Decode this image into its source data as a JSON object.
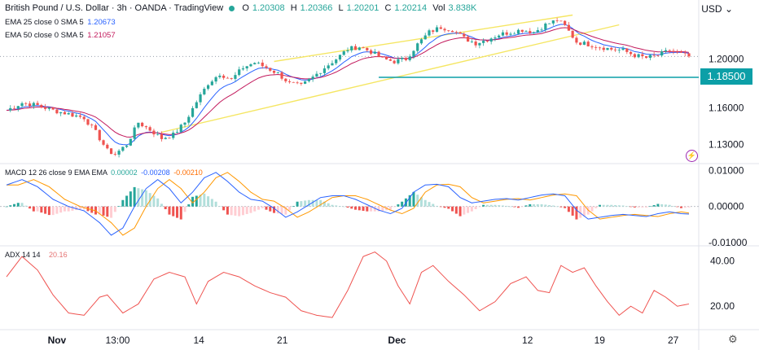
{
  "header": {
    "title": "British Pound / U.S. Dollar · 3h · OANDA · TradingView",
    "open_label": "O",
    "open": "1.20308",
    "high_label": "H",
    "high": "1.20366",
    "low_label": "L",
    "low": "1.20201",
    "close_label": "C",
    "close": "1.20214",
    "vol_label": "Vol",
    "vol": "3.838K"
  },
  "indicators": {
    "ema25": {
      "label": "EMA 25 close 0 SMA 5",
      "value": "1.20673",
      "color": "#2962ff"
    },
    "ema50": {
      "label": "EMA 50 close 0 SMA 5",
      "value": "1.21057",
      "color": "#c2185b"
    },
    "macd": {
      "label": "MACD 12 26 close 9 EMA EMA",
      "hist": "0.00002",
      "macd": "-0.00208",
      "signal": "-0.00210"
    },
    "adx": {
      "label": "ADX 14 14",
      "value": "20.16",
      "color": "#e57373"
    }
  },
  "currency": "USD",
  "price_badge": "1.18500",
  "colors": {
    "up": "#26a69a",
    "down": "#ef5350",
    "channel": "#f5e663",
    "support": "#0c9fa7",
    "macd_line": "#2962ff",
    "signal_line": "#ff9800",
    "adx_line": "#ef5350"
  },
  "icons": {
    "settings": "gear-icon",
    "alert": "lightning-icon"
  },
  "chart_data": [
    {
      "type": "candlestick",
      "title": "British Pound / U.S. Dollar",
      "interval": "3h",
      "y_ticks": [
        "1.13000",
        "1.16000",
        "1.20000"
      ],
      "x_ticks": [
        "Nov",
        "13:00",
        "14",
        "21",
        "Dec",
        "12",
        "19",
        "27"
      ],
      "ylim": [
        1.115,
        1.235
      ],
      "close_path": [
        [
          0,
          1.158
        ],
        [
          4,
          1.164
        ],
        [
          8,
          1.162
        ],
        [
          12,
          1.158
        ],
        [
          16,
          1.155
        ],
        [
          20,
          1.152
        ],
        [
          23,
          1.14
        ],
        [
          26,
          1.125
        ],
        [
          28,
          1.122
        ],
        [
          31,
          1.13
        ],
        [
          34,
          1.148
        ],
        [
          37,
          1.142
        ],
        [
          40,
          1.135
        ],
        [
          43,
          1.138
        ],
        [
          46,
          1.148
        ],
        [
          49,
          1.165
        ],
        [
          52,
          1.18
        ],
        [
          55,
          1.188
        ],
        [
          58,
          1.183
        ],
        [
          61,
          1.193
        ],
        [
          64,
          1.197
        ],
        [
          67,
          1.193
        ],
        [
          70,
          1.188
        ],
        [
          73,
          1.18
        ],
        [
          76,
          1.178
        ],
        [
          79,
          1.185
        ],
        [
          82,
          1.193
        ],
        [
          85,
          1.2
        ],
        [
          88,
          1.208
        ],
        [
          91,
          1.21
        ],
        [
          94,
          1.206
        ],
        [
          97,
          1.2
        ],
        [
          100,
          1.198
        ],
        [
          103,
          1.2
        ],
        [
          106,
          1.212
        ],
        [
          109,
          1.222
        ],
        [
          112,
          1.226
        ],
        [
          115,
          1.224
        ],
        [
          118,
          1.217
        ],
        [
          121,
          1.213
        ],
        [
          124,
          1.216
        ],
        [
          127,
          1.22
        ],
        [
          130,
          1.222
        ],
        [
          133,
          1.224
        ],
        [
          136,
          1.222
        ],
        [
          139,
          1.228
        ],
        [
          142,
          1.232
        ],
        [
          144,
          1.227
        ],
        [
          147,
          1.214
        ],
        [
          150,
          1.212
        ],
        [
          153,
          1.21
        ],
        [
          156,
          1.208
        ],
        [
          159,
          1.207
        ],
        [
          162,
          1.203
        ],
        [
          165,
          1.201
        ],
        [
          168,
          1.203
        ],
        [
          171,
          1.207
        ],
        [
          174,
          1.204
        ],
        [
          176,
          1.202
        ]
      ],
      "support_level": 1.185,
      "channel": {
        "upper": [
          [
            69,
            1.198
          ],
          [
            146,
            1.236
          ]
        ],
        "lower": [
          [
            40,
            1.14
          ],
          [
            158,
            1.228
          ]
        ]
      },
      "ema25": "1.20673",
      "ema50": "1.21057",
      "grid": false
    },
    {
      "type": "macd",
      "y_ticks": [
        "0.01000",
        "0.00000",
        "-0.01000"
      ],
      "ylim": [
        -0.0105,
        0.0115
      ],
      "macd_path": [
        [
          0,
          0.006
        ],
        [
          4,
          0.0075
        ],
        [
          8,
          0.0055
        ],
        [
          12,
          0.002
        ],
        [
          16,
          0.0
        ],
        [
          20,
          -0.0012
        ],
        [
          24,
          -0.0045
        ],
        [
          27,
          -0.008
        ],
        [
          30,
          -0.006
        ],
        [
          33,
          0.0
        ],
        [
          36,
          0.005
        ],
        [
          39,
          0.0075
        ],
        [
          42,
          0.005
        ],
        [
          45,
          0.001
        ],
        [
          48,
          0.004
        ],
        [
          51,
          0.008
        ],
        [
          54,
          0.0095
        ],
        [
          57,
          0.007
        ],
        [
          60,
          0.004
        ],
        [
          63,
          0.002
        ],
        [
          66,
          0.0015
        ],
        [
          69,
          -0.0005
        ],
        [
          72,
          -0.003
        ],
        [
          75,
          -0.0015
        ],
        [
          78,
          0.0005
        ],
        [
          81,
          0.0025
        ],
        [
          84,
          0.003
        ],
        [
          87,
          0.003
        ],
        [
          90,
          0.002
        ],
        [
          93,
          0.0005
        ],
        [
          96,
          -0.001
        ],
        [
          99,
          -0.002
        ],
        [
          102,
          -0.0005
        ],
        [
          105,
          0.004
        ],
        [
          108,
          0.006
        ],
        [
          111,
          0.0062
        ],
        [
          114,
          0.0055
        ],
        [
          117,
          0.0025
        ],
        [
          120,
          0.001
        ],
        [
          123,
          0.0015
        ],
        [
          126,
          0.002
        ],
        [
          129,
          0.0022
        ],
        [
          132,
          0.0018
        ],
        [
          135,
          0.0025
        ],
        [
          138,
          0.0032
        ],
        [
          141,
          0.0035
        ],
        [
          144,
          0.003
        ],
        [
          147,
          -0.001
        ],
        [
          150,
          -0.0035
        ],
        [
          153,
          -0.003
        ],
        [
          156,
          -0.0025
        ],
        [
          159,
          -0.0022
        ],
        [
          162,
          -0.0025
        ],
        [
          165,
          -0.0028
        ],
        [
          168,
          -0.002
        ],
        [
          171,
          -0.0015
        ],
        [
          174,
          -0.002
        ],
        [
          176,
          -0.0021
        ]
      ],
      "signal_lag": 3
    },
    {
      "type": "line",
      "name": "ADX 14 14",
      "y_ticks": [
        "20.00",
        "40.00"
      ],
      "ylim": [
        10,
        46
      ],
      "values_path": [
        [
          0,
          33
        ],
        [
          4,
          42
        ],
        [
          8,
          36
        ],
        [
          12,
          25
        ],
        [
          16,
          17
        ],
        [
          20,
          16
        ],
        [
          24,
          24
        ],
        [
          26,
          25
        ],
        [
          30,
          17
        ],
        [
          34,
          21
        ],
        [
          38,
          32
        ],
        [
          42,
          35
        ],
        [
          46,
          33
        ],
        [
          49,
          21
        ],
        [
          52,
          31
        ],
        [
          56,
          35
        ],
        [
          60,
          33
        ],
        [
          64,
          29
        ],
        [
          68,
          26
        ],
        [
          72,
          24
        ],
        [
          76,
          18
        ],
        [
          80,
          16
        ],
        [
          84,
          15
        ],
        [
          88,
          27
        ],
        [
          92,
          42
        ],
        [
          95,
          44
        ],
        [
          98,
          40
        ],
        [
          101,
          29
        ],
        [
          104,
          21
        ],
        [
          107,
          35
        ],
        [
          110,
          38
        ],
        [
          114,
          31
        ],
        [
          118,
          25
        ],
        [
          122,
          18
        ],
        [
          126,
          22
        ],
        [
          130,
          30
        ],
        [
          134,
          33
        ],
        [
          137,
          27
        ],
        [
          140,
          26
        ],
        [
          143,
          38
        ],
        [
          146,
          35
        ],
        [
          149,
          37
        ],
        [
          152,
          29
        ],
        [
          155,
          22
        ],
        [
          158,
          16
        ],
        [
          161,
          20
        ],
        [
          164,
          17
        ],
        [
          167,
          27
        ],
        [
          170,
          24
        ],
        [
          173,
          20
        ],
        [
          176,
          21
        ]
      ]
    }
  ]
}
